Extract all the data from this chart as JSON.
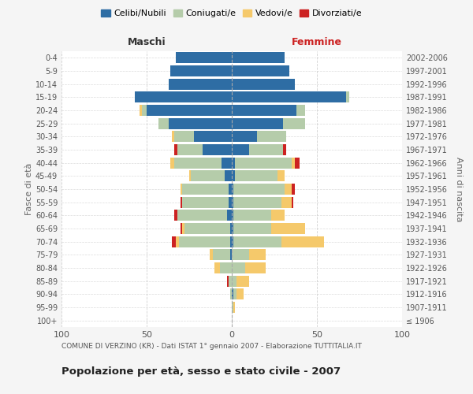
{
  "age_groups": [
    "100+",
    "95-99",
    "90-94",
    "85-89",
    "80-84",
    "75-79",
    "70-74",
    "65-69",
    "60-64",
    "55-59",
    "50-54",
    "45-49",
    "40-44",
    "35-39",
    "30-34",
    "25-29",
    "20-24",
    "15-19",
    "10-14",
    "5-9",
    "0-4"
  ],
  "birth_years": [
    "≤ 1906",
    "1907-1911",
    "1912-1916",
    "1917-1921",
    "1922-1926",
    "1927-1931",
    "1932-1936",
    "1937-1941",
    "1942-1946",
    "1947-1951",
    "1952-1956",
    "1957-1961",
    "1962-1966",
    "1967-1971",
    "1972-1976",
    "1977-1981",
    "1982-1986",
    "1987-1991",
    "1992-1996",
    "1997-2001",
    "2002-2006"
  ],
  "maschi": {
    "celibi": [
      0,
      0,
      0,
      0,
      0,
      1,
      1,
      1,
      3,
      2,
      2,
      4,
      6,
      17,
      22,
      37,
      50,
      57,
      37,
      36,
      33
    ],
    "coniugati": [
      0,
      0,
      1,
      2,
      7,
      10,
      30,
      27,
      29,
      27,
      27,
      20,
      28,
      15,
      12,
      6,
      3,
      0,
      0,
      0,
      0
    ],
    "vedovi": [
      0,
      0,
      0,
      0,
      3,
      2,
      2,
      1,
      0,
      0,
      1,
      1,
      2,
      0,
      1,
      0,
      1,
      0,
      0,
      0,
      0
    ],
    "divorziati": [
      0,
      0,
      0,
      1,
      0,
      0,
      2,
      1,
      2,
      1,
      0,
      0,
      0,
      2,
      0,
      0,
      0,
      0,
      0,
      0,
      0
    ]
  },
  "femmine": {
    "nubili": [
      0,
      0,
      1,
      0,
      0,
      0,
      1,
      1,
      1,
      1,
      1,
      2,
      2,
      10,
      15,
      30,
      38,
      67,
      37,
      34,
      31
    ],
    "coniugate": [
      0,
      1,
      2,
      3,
      8,
      10,
      28,
      22,
      22,
      28,
      30,
      25,
      33,
      20,
      17,
      13,
      5,
      2,
      0,
      0,
      0
    ],
    "vedove": [
      0,
      1,
      4,
      7,
      12,
      10,
      25,
      20,
      8,
      6,
      4,
      4,
      2,
      0,
      0,
      0,
      0,
      0,
      0,
      0,
      0
    ],
    "divorziate": [
      0,
      0,
      0,
      0,
      0,
      0,
      0,
      0,
      0,
      1,
      2,
      0,
      3,
      2,
      0,
      0,
      0,
      0,
      0,
      0,
      0
    ]
  },
  "colors": {
    "celibi": "#2E6DA4",
    "coniugati": "#B5CCAA",
    "vedovi": "#F5C96B",
    "divorziati": "#CC2222"
  },
  "title": "Popolazione per età, sesso e stato civile - 2007",
  "subtitle": "COMUNE DI VERZINO (KR) - Dati ISTAT 1° gennaio 2007 - Elaborazione TUTTITALIA.IT",
  "xlabel_left": "Maschi",
  "xlabel_right": "Femmine",
  "ylabel_left": "Fasce di età",
  "ylabel_right": "Anni di nascita",
  "xlim": 100,
  "legend_labels": [
    "Celibi/Nubili",
    "Coniugati/e",
    "Vedovi/e",
    "Divorziati/e"
  ],
  "bg_color": "#f5f5f5",
  "plot_bg": "#ffffff",
  "grid_color": "#cccccc"
}
